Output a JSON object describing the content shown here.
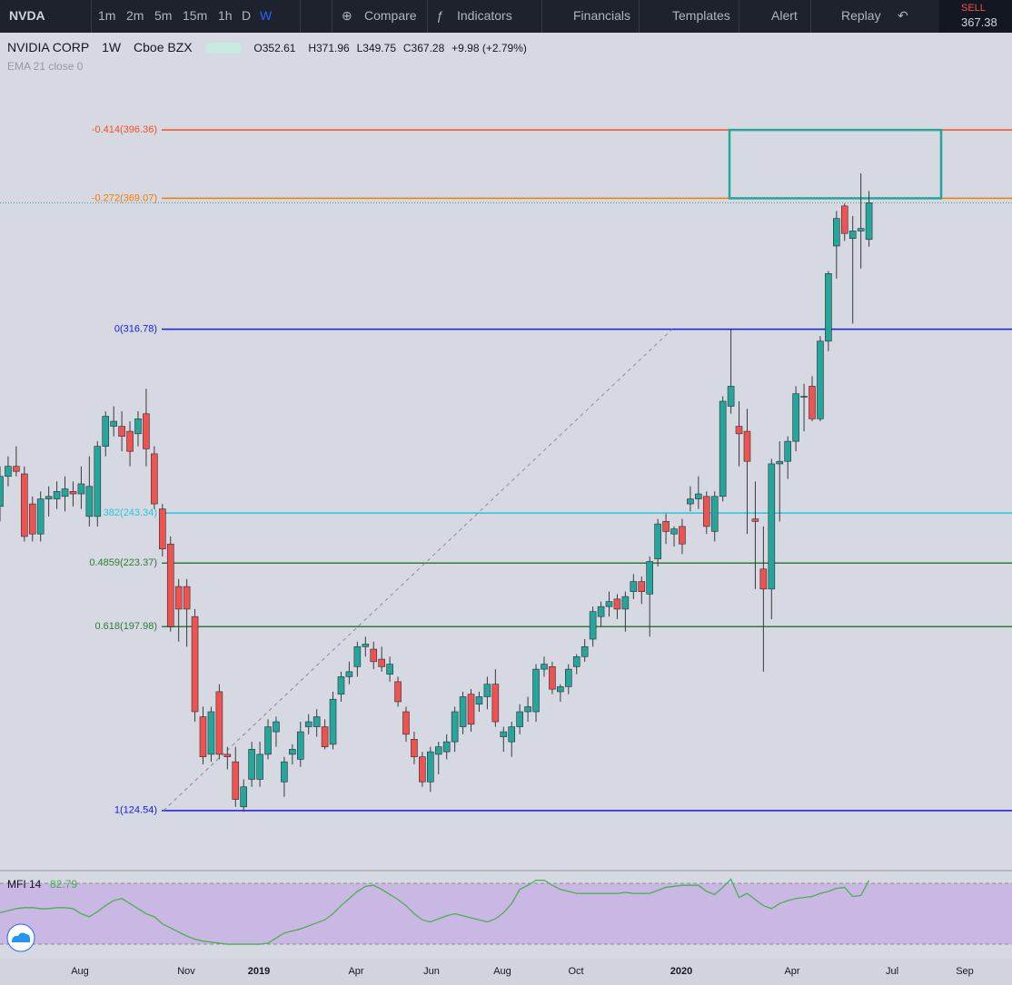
{
  "toolbar": {
    "symbol": "NVDA",
    "intervals": [
      "1m",
      "2m",
      "5m",
      "15m",
      "1h",
      "D",
      "W"
    ],
    "buttons": [
      "Compare",
      "Indicators",
      "Financials",
      "Templates",
      "Alert",
      "Replay"
    ]
  },
  "trade": {
    "side": "SELL",
    "price": "367.38"
  },
  "legend": {
    "name": "NVIDIA CORP",
    "interval": "1W",
    "exchange": "Cboe BZX",
    "open": "O352.61",
    "high": "H371.96",
    "low": "L349.75",
    "close": "C367.28",
    "change": "+9.98 (+2.79%)",
    "indicator": "EMA 21 close 0"
  },
  "chart_data": {
    "type": "candlestick",
    "ylim": [
      102,
      435.2
    ],
    "up_color": "#26a69a",
    "down_color": "#ef5350",
    "candles": [
      [
        246,
        262,
        240,
        258
      ],
      [
        258,
        266,
        254,
        262
      ],
      [
        262,
        270,
        258,
        260
      ],
      [
        259,
        262,
        232,
        234
      ],
      [
        247,
        250,
        232,
        235
      ],
      [
        235,
        252,
        232,
        249
      ],
      [
        249,
        254,
        242,
        250
      ],
      [
        249,
        256,
        245,
        252
      ],
      [
        250,
        258,
        244,
        253
      ],
      [
        252,
        256,
        246,
        251
      ],
      [
        251,
        262,
        245,
        255
      ],
      [
        242,
        266,
        238,
        254
      ],
      [
        242,
        272,
        238,
        270
      ],
      [
        270,
        284,
        266,
        282
      ],
      [
        278,
        286,
        274,
        280
      ],
      [
        278,
        284,
        268,
        274
      ],
      [
        276,
        280,
        262,
        268
      ],
      [
        275,
        284,
        270,
        281
      ],
      [
        283,
        293,
        262,
        269
      ],
      [
        267,
        270,
        245,
        247
      ],
      [
        245,
        247,
        226,
        229
      ],
      [
        231,
        234,
        196,
        198
      ],
      [
        214,
        217,
        192,
        205
      ],
      [
        214,
        217,
        190,
        205
      ],
      [
        202,
        205,
        160,
        164
      ],
      [
        162,
        166,
        143,
        146
      ],
      [
        147,
        166,
        144,
        164
      ],
      [
        172,
        175,
        145,
        147
      ],
      [
        147,
        150,
        141,
        146
      ],
      [
        144,
        150,
        126,
        129
      ],
      [
        126,
        137,
        124,
        134
      ],
      [
        137,
        152,
        134,
        149
      ],
      [
        137,
        152,
        134,
        147
      ],
      [
        147,
        161,
        145,
        158
      ],
      [
        156,
        162,
        150,
        160
      ],
      [
        136,
        146,
        130,
        144
      ],
      [
        147,
        151,
        143,
        149
      ],
      [
        145,
        160,
        142,
        156
      ],
      [
        158,
        163,
        155,
        160
      ],
      [
        158,
        165,
        154,
        162
      ],
      [
        158,
        161,
        149,
        150
      ],
      [
        151,
        172,
        149,
        169
      ],
      [
        171,
        180,
        168,
        178
      ],
      [
        178,
        184,
        175,
        180
      ],
      [
        182,
        192,
        178,
        190
      ],
      [
        190,
        194,
        186,
        191
      ],
      [
        189,
        192,
        181,
        184
      ],
      [
        185,
        190,
        180,
        182
      ],
      [
        179,
        186,
        176,
        183
      ],
      [
        176,
        178,
        166,
        168
      ],
      [
        164,
        166,
        152,
        155
      ],
      [
        153,
        156,
        143,
        146
      ],
      [
        146,
        148,
        134,
        136
      ],
      [
        136,
        150,
        132,
        148
      ],
      [
        147,
        152,
        139,
        150
      ],
      [
        148,
        155,
        145,
        152
      ],
      [
        152,
        166,
        148,
        164
      ],
      [
        158,
        172,
        155,
        170
      ],
      [
        171,
        173,
        156,
        159
      ],
      [
        167,
        172,
        164,
        170
      ],
      [
        170,
        178,
        165,
        175
      ],
      [
        175,
        181,
        158,
        160
      ],
      [
        154,
        158,
        148,
        156
      ],
      [
        152,
        160,
        146,
        158
      ],
      [
        158,
        167,
        155,
        164
      ],
      [
        164,
        170,
        160,
        166
      ],
      [
        164,
        183,
        160,
        181
      ],
      [
        181,
        186,
        178,
        183
      ],
      [
        182,
        184,
        171,
        173
      ],
      [
        172,
        175,
        168,
        174
      ],
      [
        174,
        183,
        171,
        181
      ],
      [
        182,
        187,
        179,
        186
      ],
      [
        186,
        193,
        184,
        190
      ],
      [
        193,
        206,
        190,
        204
      ],
      [
        202,
        208,
        198,
        206
      ],
      [
        206,
        212,
        202,
        208
      ],
      [
        209,
        211,
        201,
        205
      ],
      [
        205,
        212,
        196,
        210
      ],
      [
        212,
        219,
        209,
        216
      ],
      [
        216,
        218,
        207,
        212
      ],
      [
        211,
        226,
        194,
        224
      ],
      [
        225,
        241,
        222,
        239
      ],
      [
        240,
        243,
        231,
        236
      ],
      [
        235,
        238,
        230,
        237
      ],
      [
        238,
        241,
        227,
        231
      ],
      [
        247,
        254,
        244,
        249
      ],
      [
        249,
        258,
        245,
        251
      ],
      [
        250,
        252,
        235,
        238
      ],
      [
        236,
        252,
        232,
        250
      ],
      [
        250,
        290,
        248,
        288
      ],
      [
        286,
        317,
        283,
        294
      ],
      [
        278,
        288,
        262,
        275
      ],
      [
        276,
        285,
        235,
        264
      ],
      [
        241,
        256,
        213,
        240
      ],
      [
        221,
        238,
        180,
        213
      ],
      [
        213,
        265,
        201,
        263
      ],
      [
        263,
        272,
        240,
        264
      ],
      [
        264,
        274,
        257,
        272
      ],
      [
        272,
        294,
        268,
        291
      ],
      [
        290,
        295,
        276,
        290
      ],
      [
        294,
        298,
        280,
        281
      ],
      [
        281,
        314,
        280,
        312
      ],
      [
        312,
        340,
        308,
        339
      ],
      [
        350,
        364,
        337,
        361
      ],
      [
        366,
        367,
        352,
        355
      ],
      [
        353,
        362,
        319,
        356
      ],
      [
        356,
        379,
        341,
        357
      ],
      [
        352.61,
        371.96,
        349.75,
        367.28
      ]
    ],
    "fib": [
      {
        "label": "-0.414(396.36)",
        "value": 396.36,
        "color": "#f4511e"
      },
      {
        "label": "-0.272(369.07)",
        "value": 369.07,
        "color": "#f57c00"
      },
      {
        "label": "0(316.78)",
        "value": 316.78,
        "color": "#1a1adb"
      },
      {
        "label": "382(243.34)",
        "value": 243.34,
        "color": "#26c6da"
      },
      {
        "label": "0.4859(223.37)",
        "value": 223.37,
        "color": "#2e7d32"
      },
      {
        "label": "0.618(197.98)",
        "value": 197.98,
        "color": "#2e7d32"
      },
      {
        "label": "1(124.54)",
        "value": 124.54,
        "color": "#1a1adb"
      }
    ],
    "box": [
      396.36,
      369.07
    ],
    "x_labels": [
      "Aug",
      "Nov",
      "2019",
      "Apr",
      "Jun",
      "Aug",
      "Oct",
      "2020",
      "Apr",
      "Jul",
      "Sep"
    ],
    "mfi": {
      "title": "MFI 14",
      "value_label": "82.79",
      "ylim": [
        9.3,
        91.6
      ],
      "bands": [
        20,
        80
      ],
      "color": "#4caf50",
      "values": [
        51,
        53,
        55,
        56,
        56,
        55,
        55,
        56,
        56,
        55,
        50,
        47,
        52,
        58,
        63,
        65,
        60,
        55,
        50,
        47,
        40,
        36,
        32,
        28,
        25,
        23,
        22,
        21,
        20,
        20,
        20,
        20,
        20,
        21,
        26,
        31,
        33,
        35,
        38,
        41,
        44,
        50,
        58,
        65,
        72,
        77,
        78,
        74,
        69,
        64,
        58,
        50,
        44,
        42,
        45,
        48,
        50,
        48,
        46,
        44,
        42,
        45,
        51,
        60,
        74,
        78,
        83,
        83,
        78,
        74,
        72,
        70,
        70,
        70,
        70,
        70,
        70,
        71,
        70,
        70,
        70,
        73,
        76,
        77,
        78,
        78,
        78,
        72,
        69,
        76,
        84,
        66,
        70,
        64,
        58,
        55,
        60,
        63,
        65,
        66,
        67,
        70,
        72,
        75,
        76,
        67,
        68,
        82.79
      ]
    }
  }
}
